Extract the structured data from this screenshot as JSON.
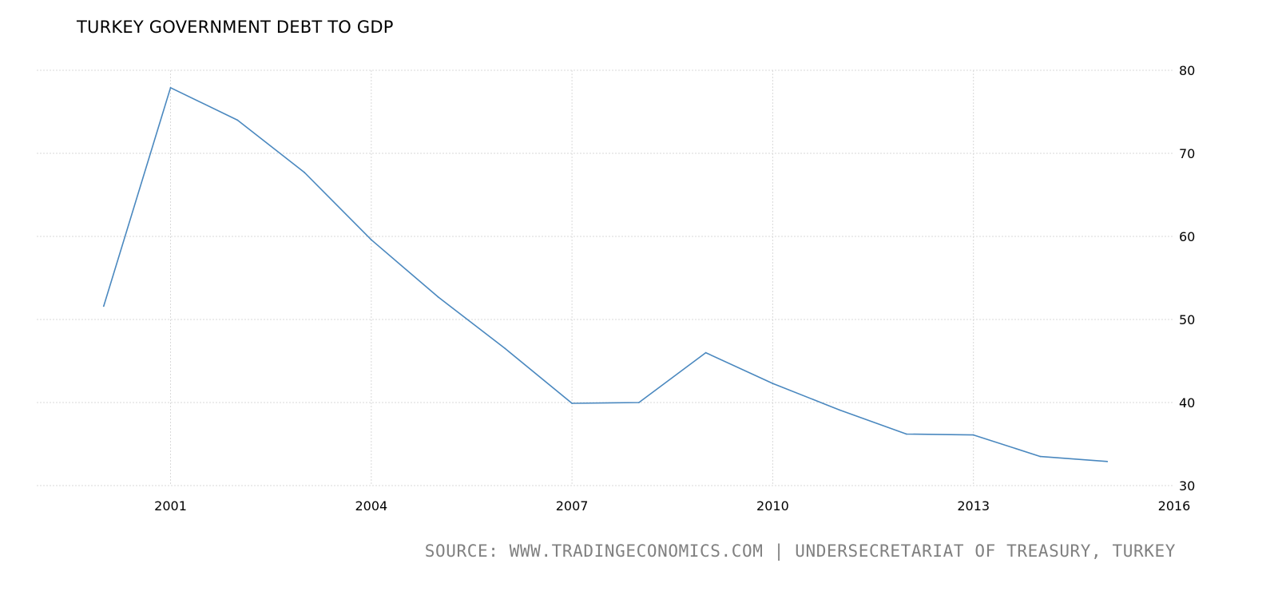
{
  "title": "TURKEY GOVERNMENT DEBT TO GDP",
  "source": "SOURCE: WWW.TRADINGECONOMICS.COM | UNDERSECRETARIAT OF TREASURY, TURKEY",
  "colors": {
    "line": "#4a88bf",
    "grid": "#d9d9d9"
  },
  "chart_data": {
    "type": "line",
    "title": "TURKEY GOVERNMENT DEBT TO GDP",
    "xlabel": "",
    "ylabel": "",
    "grid": true,
    "x_ticks": [
      "2001",
      "2004",
      "2007",
      "2010",
      "2013",
      "2016"
    ],
    "y_ticks": [
      "30",
      "40",
      "50",
      "60",
      "70",
      "80"
    ],
    "ylim": [
      30,
      80
    ],
    "xlim": [
      1999,
      2016
    ],
    "x": [
      2000,
      2001,
      2002,
      2003,
      2004,
      2005,
      2006,
      2007,
      2008,
      2009,
      2010,
      2011,
      2012,
      2013,
      2014,
      2015
    ],
    "values": [
      51.6,
      77.9,
      74.0,
      67.7,
      59.6,
      52.7,
      46.5,
      39.9,
      40.0,
      46.0,
      42.3,
      39.1,
      36.2,
      36.1,
      33.5,
      32.9
    ]
  }
}
